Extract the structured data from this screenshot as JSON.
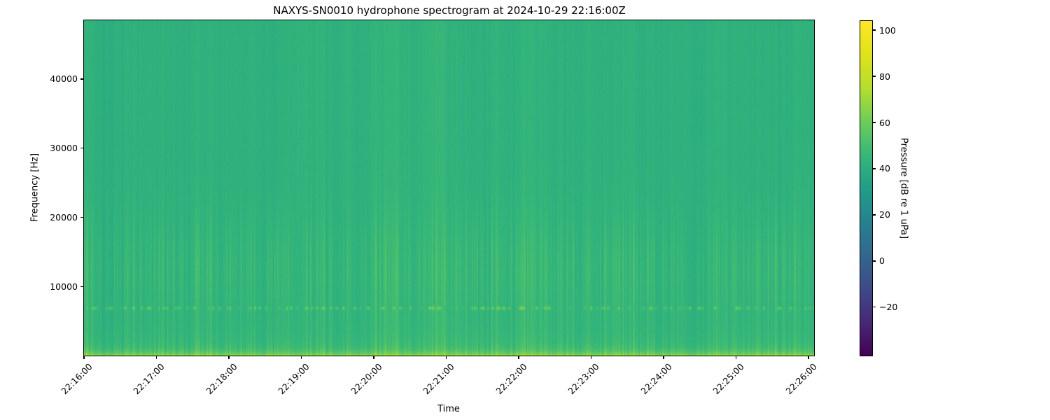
{
  "figure": {
    "title": "NAXYS-SN0010 hydrophone spectrogram at 2024-10-29 22:16:00Z"
  },
  "chart_data": {
    "type": "heatmap",
    "subtype": "spectrogram",
    "title": "NAXYS-SN0010 hydrophone spectrogram at 2024-10-29 22:16:00Z",
    "xlabel": "Time",
    "ylabel": "Frequency [Hz]",
    "x_tick_labels": [
      "22:16:00",
      "22:17:00",
      "22:18:00",
      "22:19:00",
      "22:20:00",
      "22:21:00",
      "22:22:00",
      "22:23:00",
      "22:24:00",
      "22:25:00",
      "22:26:00"
    ],
    "x_span_seconds": 605,
    "y_tick_values": [
      10000,
      20000,
      30000,
      40000
    ],
    "y_tick_labels": [
      "10000",
      "20000",
      "30000",
      "40000"
    ],
    "ylim": [
      0,
      48500
    ],
    "grid": false,
    "legend": "none",
    "colorbar": {
      "label": "Pressure [dB re 1 uPa]",
      "tick_values": [
        100,
        80,
        60,
        40,
        20,
        0,
        -20
      ],
      "tick_labels": [
        "100",
        "80",
        "60",
        "40",
        "20",
        "0",
        "−20"
      ],
      "vmin": -41,
      "vmax": 104,
      "colormap": "viridis",
      "orientation": "vertical",
      "position": "right"
    },
    "background_level_db": 42,
    "features": [
      {
        "name": "broadband-low-frequency-band",
        "freq_hz": [
          0,
          1500
        ],
        "peak_level_db": 66,
        "description": "continuous bright broadband energy below ~1 kHz along the entire record"
      },
      {
        "name": "intermittent-tonal-line",
        "freq_hz": [
          6600,
          7200
        ],
        "peak_level_db": 62,
        "description": "dashed bright tonal line near 6.9 kHz, on/off through time"
      },
      {
        "name": "transient-click-striations",
        "freq_hz": [
          2000,
          20000
        ],
        "peak_level_db": 60,
        "description": "narrow vertical streaks across all frequencies, strongest between ~5 and 18 kHz"
      },
      {
        "name": "uniform-high-frequency-field",
        "freq_hz": [
          20000,
          48500
        ],
        "level_db": 42,
        "description": "nearly uniform teal background with very faint striations above 20 kHz"
      }
    ]
  },
  "colors": {
    "figure_background": "#ffffff",
    "frame": "#000000",
    "base_field": "#1fa189",
    "colormap_stops": [
      "#440154",
      "#482878",
      "#3e4a89",
      "#31688e",
      "#26828e",
      "#1f9e89",
      "#35b779",
      "#6dcd59",
      "#b5de2b",
      "#dfe318",
      "#fde725"
    ]
  }
}
